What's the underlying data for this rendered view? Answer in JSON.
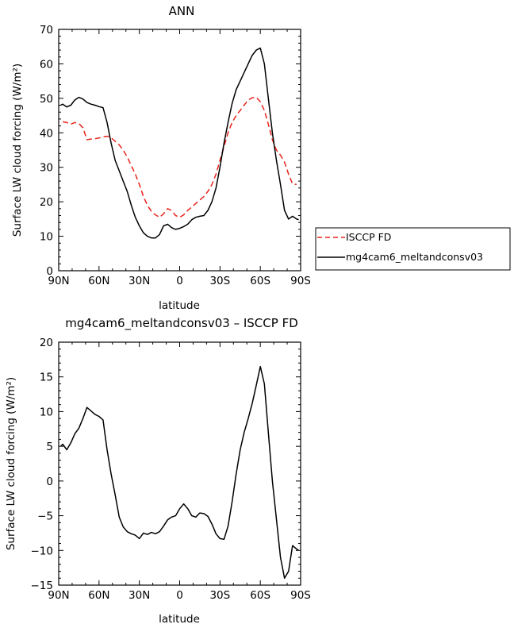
{
  "chart_data": [
    {
      "type": "line",
      "title": "ANN",
      "xlabel": "latitude",
      "ylabel": "Surface LW cloud forcing (W/m²)",
      "xlim": [
        -90,
        90
      ],
      "ylim": [
        0,
        70
      ],
      "x_ticks": [
        -90,
        -60,
        -30,
        0,
        30,
        60,
        90
      ],
      "x_tick_labels": [
        "90N",
        "60N",
        "30N",
        "0",
        "30S",
        "60S",
        "90S"
      ],
      "y_ticks": [
        0,
        10,
        20,
        30,
        40,
        50,
        60,
        70
      ],
      "y_tick_labels": [
        "0",
        "10",
        "20",
        "30",
        "40",
        "50",
        "60",
        "70"
      ],
      "legend_position": "outside-right",
      "series": [
        {
          "name": "ISCCP FD",
          "color": "#e8241c",
          "dash": "dashed",
          "x": [
            -87,
            -84,
            -81,
            -78,
            -75,
            -72,
            -69,
            -66,
            -63,
            -60,
            -57,
            -54,
            -51,
            -48,
            -45,
            -42,
            -39,
            -36,
            -33,
            -30,
            -27,
            -24,
            -21,
            -18,
            -15,
            -12,
            -9,
            -6,
            -3,
            0,
            3,
            6,
            9,
            12,
            15,
            18,
            21,
            24,
            27,
            30,
            33,
            36,
            39,
            42,
            45,
            48,
            51,
            54,
            57,
            60,
            63,
            66,
            69,
            72,
            75,
            78,
            81,
            84,
            87
          ],
          "values": [
            43.2,
            43.0,
            42.5,
            43.0,
            42.7,
            41.5,
            38.0,
            38.2,
            38.3,
            38.5,
            38.8,
            39.0,
            38.6,
            37.5,
            36.5,
            35.0,
            33.0,
            30.5,
            28.0,
            25.0,
            21.5,
            19.0,
            17.2,
            16.2,
            15.5,
            16.5,
            18.0,
            17.5,
            16.0,
            15.5,
            16.2,
            17.5,
            18.5,
            19.5,
            20.5,
            21.5,
            23.0,
            25.0,
            28.0,
            32.0,
            36.0,
            40.0,
            43.0,
            45.0,
            46.5,
            48.0,
            49.5,
            50.2,
            50.3,
            49.0,
            46.5,
            42.5,
            38.0,
            35.0,
            33.5,
            31.5,
            28.0,
            25.2,
            25.0
          ]
        },
        {
          "name": "mg4cam6_meltandconsv03",
          "color": "#000000",
          "dash": "solid",
          "x": [
            -88.5,
            -87,
            -84,
            -81,
            -78,
            -75,
            -72,
            -69,
            -66,
            -63,
            -60,
            -57,
            -54,
            -51,
            -48,
            -45,
            -42,
            -39,
            -36,
            -33,
            -30,
            -27,
            -24,
            -21,
            -18,
            -15,
            -12,
            -9,
            -6,
            -3,
            0,
            3,
            6,
            9,
            12,
            15,
            18,
            21,
            24,
            27,
            30,
            33,
            36,
            39,
            42,
            45,
            48,
            51,
            54,
            57,
            60,
            63,
            66,
            69,
            72,
            75,
            78,
            81,
            84,
            87,
            88.5
          ],
          "values": [
            48.0,
            48.3,
            47.5,
            48.0,
            49.5,
            50.3,
            49.8,
            48.8,
            48.3,
            48.0,
            47.6,
            47.3,
            43.0,
            37.0,
            32.0,
            29.0,
            26.0,
            23.0,
            19.0,
            15.5,
            13.0,
            11.0,
            10.0,
            9.5,
            9.5,
            10.5,
            13.0,
            13.5,
            12.5,
            12.0,
            12.3,
            12.8,
            13.5,
            14.8,
            15.5,
            15.8,
            16.0,
            17.5,
            20.0,
            24.0,
            30.0,
            37.0,
            43.0,
            48.5,
            52.5,
            55.0,
            57.5,
            60.0,
            62.5,
            64.0,
            64.6,
            60.0,
            50.0,
            40.0,
            32.0,
            25.0,
            17.5,
            15.0,
            15.8,
            15.0,
            14.8
          ]
        }
      ]
    },
    {
      "type": "line",
      "title": "mg4cam6_meltandconsv03 – ISCCP FD",
      "xlabel": "latitude",
      "ylabel": "Surface LW cloud forcing (W/m²)",
      "xlim": [
        -90,
        90
      ],
      "ylim": [
        -15,
        20
      ],
      "x_ticks": [
        -90,
        -60,
        -30,
        0,
        30,
        60,
        90
      ],
      "x_tick_labels": [
        "90N",
        "60N",
        "30N",
        "0",
        "30S",
        "60S",
        "90S"
      ],
      "y_ticks": [
        -15,
        -10,
        -5,
        0,
        5,
        10,
        15,
        20
      ],
      "y_tick_labels": [
        "−15",
        "−10",
        "−5",
        "0",
        "5",
        "10",
        "15",
        "20"
      ],
      "series": [
        {
          "color": "#000000",
          "dash": "solid",
          "x": [
            -88.5,
            -87,
            -84,
            -81,
            -78,
            -75,
            -72,
            -69,
            -66,
            -63,
            -60,
            -57,
            -54,
            -51,
            -48,
            -45,
            -42,
            -39,
            -36,
            -33,
            -30,
            -27,
            -24,
            -21,
            -18,
            -15,
            -12,
            -9,
            -6,
            -3,
            0,
            3,
            6,
            9,
            12,
            15,
            18,
            21,
            24,
            27,
            30,
            33,
            36,
            39,
            42,
            45,
            48,
            51,
            54,
            57,
            60,
            63,
            66,
            69,
            72,
            75,
            78,
            81,
            84,
            87,
            88.5
          ],
          "values": [
            5.0,
            5.3,
            4.5,
            5.5,
            6.8,
            7.6,
            9.0,
            10.6,
            10.1,
            9.6,
            9.3,
            8.8,
            4.5,
            1.0,
            -2.0,
            -5.2,
            -6.6,
            -7.3,
            -7.6,
            -7.8,
            -8.3,
            -7.5,
            -7.7,
            -7.4,
            -7.6,
            -7.3,
            -6.5,
            -5.6,
            -5.2,
            -5.0,
            -4.0,
            -3.3,
            -4.0,
            -5.0,
            -5.2,
            -4.6,
            -4.7,
            -5.1,
            -6.2,
            -7.6,
            -8.3,
            -8.4,
            -6.5,
            -3.0,
            1.0,
            4.5,
            7.0,
            9.0,
            11.2,
            13.8,
            16.5,
            14.0,
            7.0,
            0.0,
            -5.5,
            -11.0,
            -14.0,
            -13.0,
            -9.3,
            -9.8,
            -10.0
          ]
        }
      ]
    }
  ]
}
